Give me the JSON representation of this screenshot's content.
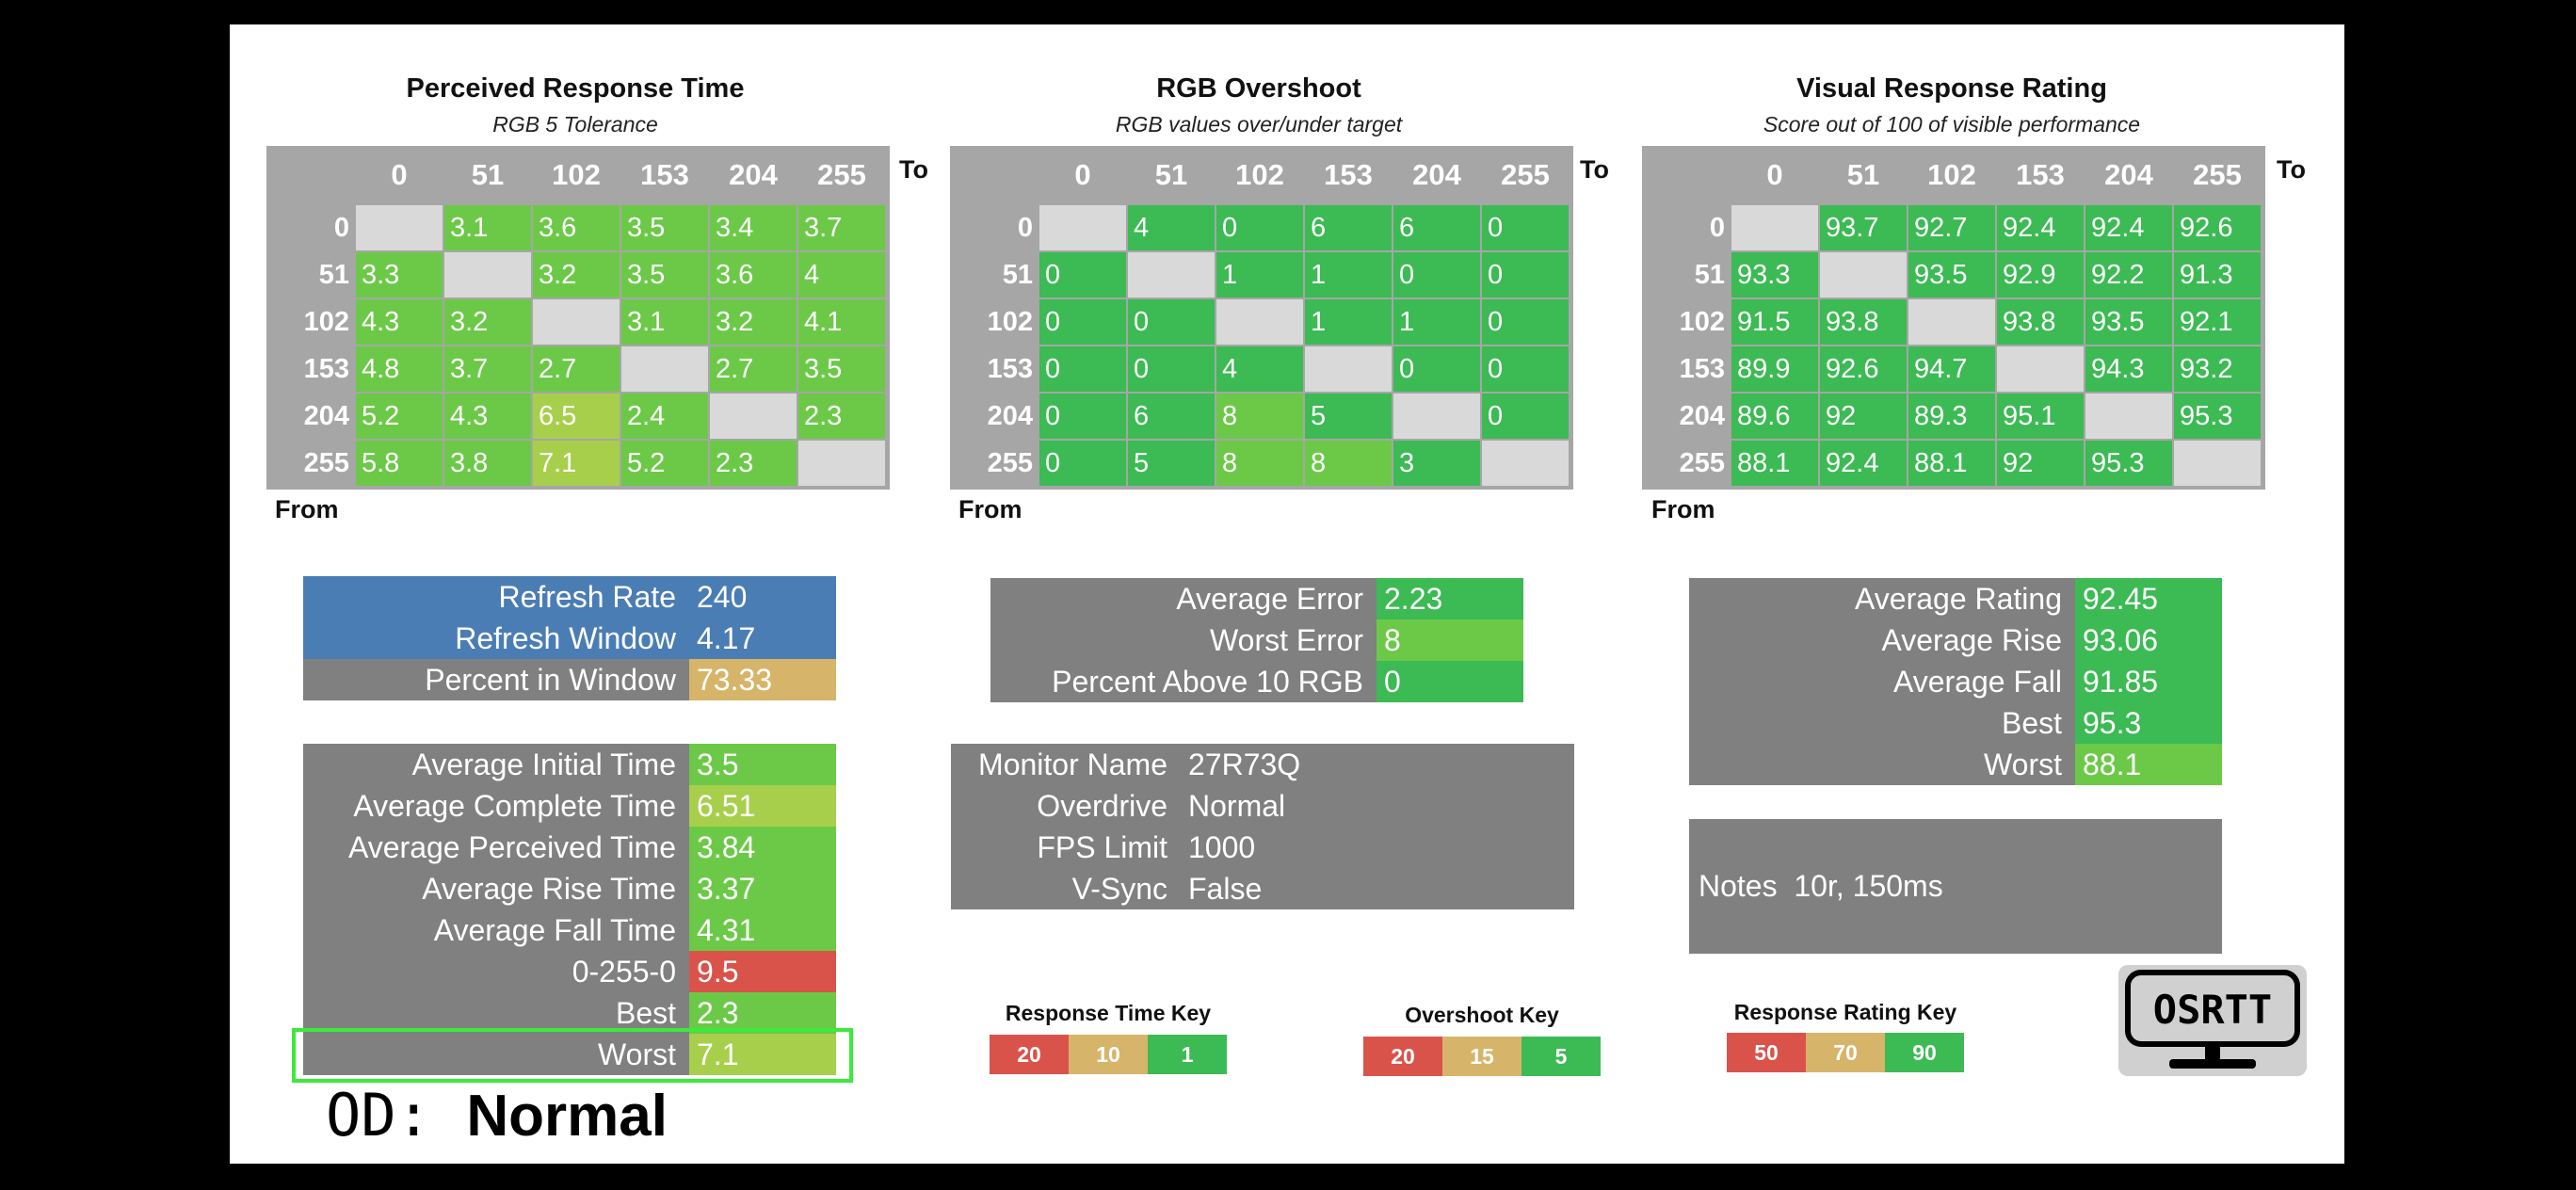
{
  "sections": {
    "response": {
      "title": "Perceived Response Time",
      "subtitle": "RGB 5 Tolerance"
    },
    "overshoot": {
      "title": "RGB Overshoot",
      "subtitle": "RGB values over/under target"
    },
    "rating": {
      "title": "Visual Response Rating",
      "subtitle": "Score out of 100 of visible performance"
    }
  },
  "axis": {
    "to": "To",
    "from": "From",
    "levels": [
      "0",
      "51",
      "102",
      "153",
      "204",
      "255"
    ]
  },
  "matrices": {
    "response": [
      [
        "",
        "3.1",
        "3.6",
        "3.5",
        "3.4",
        "3.7"
      ],
      [
        "3.3",
        "",
        "3.2",
        "3.5",
        "3.6",
        "4"
      ],
      [
        "4.3",
        "3.2",
        "",
        "3.1",
        "3.2",
        "4.1"
      ],
      [
        "4.8",
        "3.7",
        "2.7",
        "",
        "2.7",
        "3.5"
      ],
      [
        "5.2",
        "4.3",
        "6.5",
        "2.4",
        "",
        "2.3"
      ],
      [
        "5.8",
        "3.8",
        "7.1",
        "5.2",
        "2.3",
        ""
      ]
    ],
    "overshoot": [
      [
        "",
        "4",
        "0",
        "6",
        "6",
        "0"
      ],
      [
        "0",
        "",
        "1",
        "1",
        "0",
        "0"
      ],
      [
        "0",
        "0",
        "",
        "1",
        "1",
        "0"
      ],
      [
        "0",
        "0",
        "4",
        "",
        "0",
        "0"
      ],
      [
        "0",
        "6",
        "8",
        "5",
        "",
        "0"
      ],
      [
        "0",
        "5",
        "8",
        "8",
        "3",
        ""
      ]
    ],
    "rating": [
      [
        "",
        "93.7",
        "92.7",
        "92.4",
        "92.4",
        "92.6"
      ],
      [
        "93.3",
        "",
        "93.5",
        "92.9",
        "92.2",
        "91.3"
      ],
      [
        "91.5",
        "93.8",
        "",
        "93.8",
        "93.5",
        "92.1"
      ],
      [
        "89.9",
        "92.6",
        "94.7",
        "",
        "94.3",
        "93.2"
      ],
      [
        "89.6",
        "92",
        "89.3",
        "95.1",
        "",
        "95.3"
      ],
      [
        "88.1",
        "92.4",
        "88.1",
        "92",
        "95.3",
        ""
      ]
    ]
  },
  "refresh": [
    {
      "label": "Refresh Rate",
      "value": "240"
    },
    {
      "label": "Refresh Window",
      "value": "4.17"
    },
    {
      "label": "Percent in Window",
      "value": "73.33"
    }
  ],
  "response_stats": [
    {
      "label": "Average Initial Time",
      "value": "3.5"
    },
    {
      "label": "Average Complete Time",
      "value": "6.51"
    },
    {
      "label": "Average Perceived Time",
      "value": "3.84"
    },
    {
      "label": "Average Rise Time",
      "value": "3.37"
    },
    {
      "label": "Average Fall Time",
      "value": "4.31"
    },
    {
      "label": "0-255-0",
      "value": "9.5"
    },
    {
      "label": "Best",
      "value": "2.3"
    },
    {
      "label": "Worst",
      "value": "7.1"
    }
  ],
  "overshoot_stats": [
    {
      "label": "Average Error",
      "value": "2.23"
    },
    {
      "label": "Worst Error",
      "value": "8"
    },
    {
      "label": "Percent Above 10 RGB",
      "value": "0"
    }
  ],
  "monitor": [
    {
      "label": "Monitor Name",
      "value": "27R73Q"
    },
    {
      "label": "Overdrive",
      "value": "Normal"
    },
    {
      "label": "FPS Limit",
      "value": "1000"
    },
    {
      "label": "V-Sync",
      "value": "False"
    }
  ],
  "rating_stats": [
    {
      "label": "Average Rating",
      "value": "92.45"
    },
    {
      "label": "Average Rise",
      "value": "93.06"
    },
    {
      "label": "Average Fall",
      "value": "91.85"
    },
    {
      "label": "Best",
      "value": "95.3"
    },
    {
      "label": "Worst",
      "value": "88.1"
    }
  ],
  "notes": {
    "label": "Notes",
    "value": "10r, 150ms"
  },
  "keys": {
    "response": {
      "title": "Response Time Key",
      "values": [
        "20",
        "10",
        "1"
      ]
    },
    "overshoot": {
      "title": "Overshoot Key",
      "values": [
        "20",
        "15",
        "5"
      ]
    },
    "rating": {
      "title": "Response Rating Key",
      "values": [
        "50",
        "70",
        "90"
      ]
    }
  },
  "od": {
    "prefix": "OD:",
    "value": "Normal"
  },
  "logo": "OSRTT",
  "colors": {
    "green": "#3cba54",
    "light_green": "#6cc948",
    "yellow_green": "#a7cf4c",
    "amber": "#d6b56a",
    "red": "#d9534a",
    "blue": "#4a7db4",
    "gray": "#808080",
    "header_gray": "#a6a6a6",
    "diag_gray": "#d9d9d9"
  }
}
